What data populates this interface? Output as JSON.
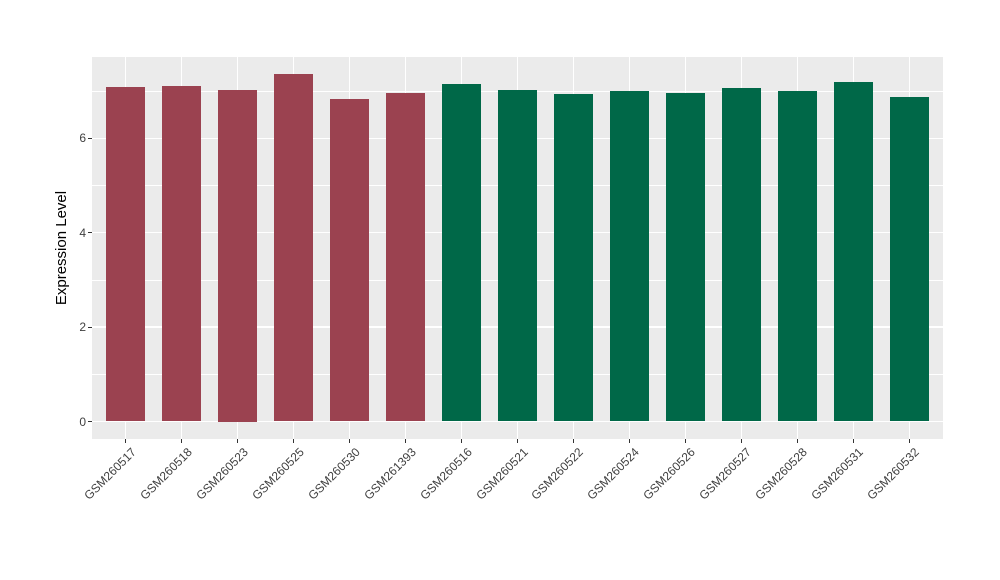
{
  "figure": {
    "background": "#FFFFFF",
    "y_axis_title": "Expression Level"
  },
  "chart_data": {
    "type": "bar",
    "title": "",
    "xlabel": "",
    "ylabel": "Expression Level",
    "legend": "none",
    "grid": "on",
    "panel_background": "#EBEBEB",
    "gridline_color": "#FFFFFF",
    "axis_text_color": "#404040",
    "tick_mark_color": "#333333",
    "categories": [
      "GSM260517",
      "GSM260518",
      "GSM260523",
      "GSM260525",
      "GSM260530",
      "GSM261393",
      "GSM260516",
      "GSM260521",
      "GSM260522",
      "GSM260524",
      "GSM260526",
      "GSM260527",
      "GSM260528",
      "GSM260531",
      "GSM260532"
    ],
    "values": [
      7.08,
      7.11,
      7.03,
      7.36,
      6.82,
      6.95,
      7.15,
      7.02,
      6.93,
      7.0,
      6.95,
      7.06,
      7.0,
      7.19,
      6.87
    ],
    "bar_colors": [
      "#9B4250",
      "#9B4250",
      "#9B4250",
      "#9B4250",
      "#9B4250",
      "#9B4250",
      "#006848",
      "#006848",
      "#006848",
      "#006848",
      "#006848",
      "#006848",
      "#006848",
      "#006848",
      "#006848"
    ],
    "group_colors": {
      "maroon": "#9B4250",
      "green": "#006848"
    },
    "yticks": [
      0,
      2,
      4,
      6
    ],
    "minor_yticks": [
      1,
      3,
      5,
      7
    ],
    "ylim": [
      -0.36,
      7.72
    ],
    "x_label_angle_deg": 45
  }
}
